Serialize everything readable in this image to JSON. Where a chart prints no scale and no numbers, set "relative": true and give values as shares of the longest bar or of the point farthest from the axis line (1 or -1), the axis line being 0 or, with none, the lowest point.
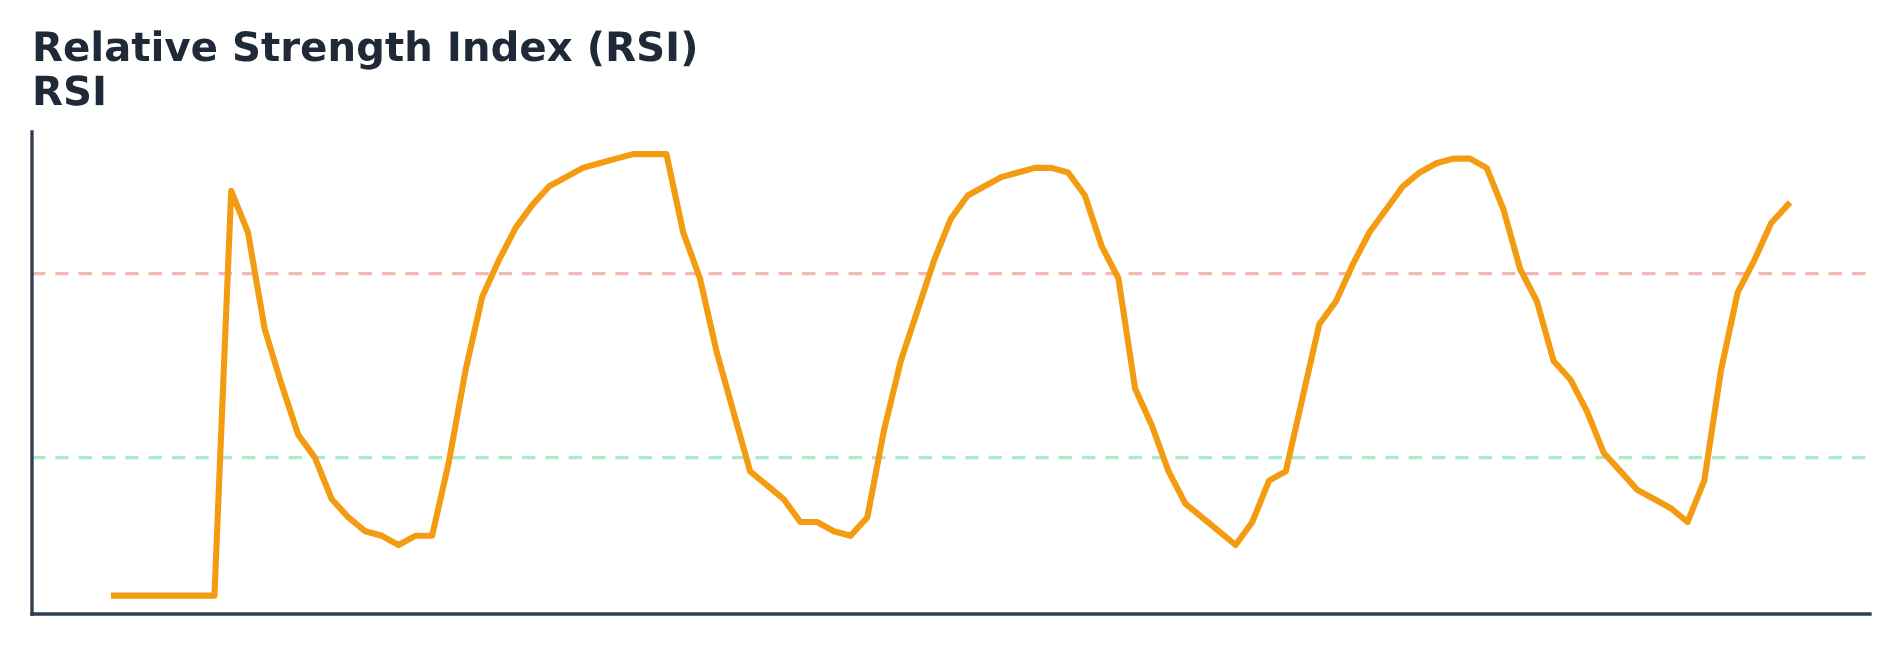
{
  "chart_data": {
    "type": "line",
    "title": "Relative Strength Index (RSI)",
    "subtitle": "RSI",
    "relative": true,
    "categories": [
      null,
      null,
      null,
      null,
      null,
      null,
      null,
      null,
      null,
      null,
      null,
      null,
      null,
      null,
      null,
      null,
      null,
      null,
      null,
      null,
      null,
      null,
      null,
      null,
      null,
      null,
      null,
      null,
      null,
      null,
      null,
      null,
      null,
      null,
      null,
      null,
      null,
      null,
      null,
      null,
      null,
      null,
      null,
      null,
      null,
      null,
      null,
      null,
      null,
      null,
      null,
      null,
      null,
      null,
      null,
      null,
      null,
      null,
      null,
      null,
      null,
      null,
      null,
      null,
      null,
      null,
      null,
      null,
      null,
      null,
      null,
      null,
      null,
      null,
      null,
      null,
      null,
      null,
      null,
      null,
      null,
      null,
      null,
      null,
      null,
      null,
      null,
      null,
      null,
      null,
      null,
      null,
      null,
      null,
      null,
      null,
      null,
      null,
      null,
      null,
      null
    ],
    "series": [
      {
        "color": "#f39c12",
        "values": [
          0.04,
          0.04,
          0.04,
          0.04,
          0.04,
          0.04,
          0.04,
          0.92,
          0.83,
          0.62,
          0.5,
          0.39,
          0.34,
          0.25,
          0.21,
          0.18,
          0.17,
          0.15,
          0.17,
          0.17,
          0.33,
          0.53,
          0.69,
          0.77,
          0.84,
          0.89,
          0.93,
          0.95,
          0.97,
          0.98,
          0.99,
          1.0,
          1.0,
          1.0,
          0.83,
          0.73,
          0.57,
          0.44,
          0.31,
          0.28,
          0.25,
          0.2,
          0.2,
          0.18,
          0.17,
          0.21,
          0.4,
          0.55,
          0.66,
          0.77,
          0.86,
          0.91,
          0.93,
          0.95,
          0.96,
          0.97,
          0.97,
          0.96,
          0.91,
          0.8,
          0.73,
          0.49,
          0.41,
          0.31,
          0.24,
          0.21,
          0.18,
          0.15,
          0.2,
          0.29,
          0.31,
          0.47,
          0.63,
          0.68,
          0.76,
          0.83,
          0.88,
          0.93,
          0.96,
          0.98,
          0.99,
          0.99,
          0.97,
          0.88,
          0.75,
          0.68,
          0.55,
          0.51,
          0.44,
          0.35,
          0.31,
          0.27,
          0.25,
          0.23,
          0.2,
          0.29,
          0.53,
          0.7,
          0.77,
          0.85,
          0.89
        ]
      }
    ],
    "ref_lines": [
      {
        "axis": "y",
        "value": 0.74,
        "color": "#f5b7b1",
        "line_style": "dashed"
      },
      {
        "axis": "y",
        "value": 0.34,
        "color": "#abebc6",
        "line_style": "dashed"
      }
    ],
    "legend": false
  }
}
